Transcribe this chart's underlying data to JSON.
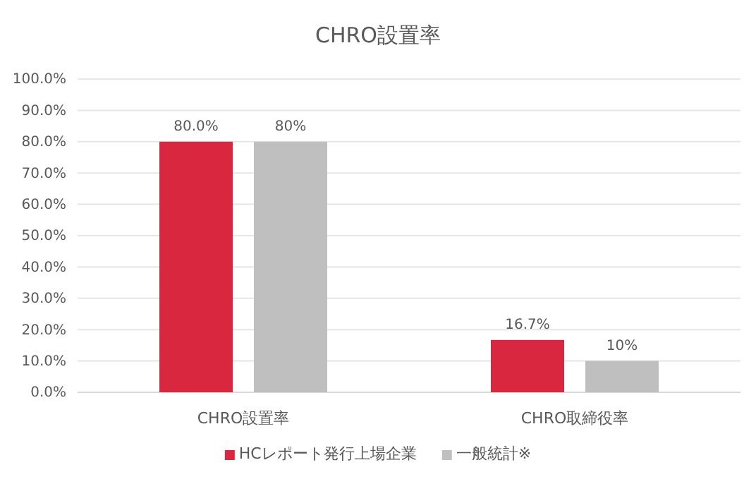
{
  "chart_data": {
    "type": "bar",
    "title": "CHRO設置率",
    "categories": [
      "CHRO設置率",
      "CHRO取締役率"
    ],
    "series": [
      {
        "name": "HCレポート発行上場企業",
        "color": "#d9273f",
        "values": [
          80.0,
          16.7
        ],
        "value_labels": [
          "80.0%",
          "16.7%"
        ]
      },
      {
        "name": "一般統計※",
        "color": "#bfbfbf",
        "values": [
          80,
          10
        ],
        "value_labels": [
          "80%",
          "10%"
        ]
      }
    ],
    "ylim": [
      0,
      100
    ],
    "yticks": [
      {
        "value": 0,
        "label": "0.0%"
      },
      {
        "value": 10,
        "label": "10.0%"
      },
      {
        "value": 20,
        "label": "20.0%"
      },
      {
        "value": 30,
        "label": "30.0%"
      },
      {
        "value": 40,
        "label": "40.0%"
      },
      {
        "value": 50,
        "label": "50.0%"
      },
      {
        "value": 60,
        "label": "60.0%"
      },
      {
        "value": 70,
        "label": "70.0%"
      },
      {
        "value": 80,
        "label": "80.0%"
      },
      {
        "value": 90,
        "label": "90.0%"
      },
      {
        "value": 100,
        "label": "100.0%"
      }
    ],
    "grid": "y",
    "legend": "bottom"
  }
}
